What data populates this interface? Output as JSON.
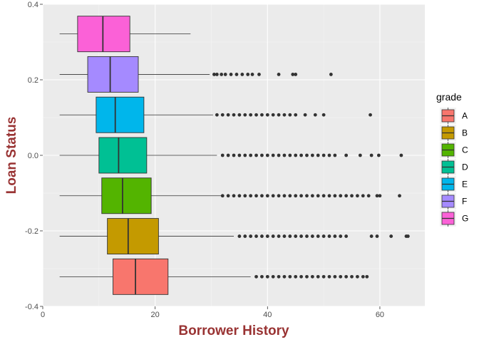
{
  "chart_data": {
    "type": "boxplot",
    "orientation": "horizontal",
    "xlabel": "Borrower History",
    "ylabel": "Loan Status",
    "xlim": [
      0,
      68
    ],
    "ylim": [
      -0.4,
      0.4
    ],
    "x_ticks": [
      0,
      20,
      40,
      60
    ],
    "y_ticks": [
      -0.4,
      -0.2,
      0.0,
      0.2,
      0.4
    ],
    "y_tick_labels": [
      "-0.4",
      "-0.2",
      "0.0",
      "0.2",
      "0.4"
    ],
    "legend": {
      "title": "grade",
      "position": "right"
    },
    "grid": true,
    "series": [
      {
        "name": "A",
        "color": "#F8766D",
        "y_center": -0.3214,
        "whisker_low": 3,
        "q1": 12.5,
        "median": 16.5,
        "q3": 22.3,
        "whisker_high": 37,
        "outliers": [
          38,
          39,
          40,
          41,
          42,
          43,
          44,
          45,
          46,
          47,
          48,
          49,
          50,
          51,
          52,
          53,
          54,
          55,
          56,
          57,
          57.7
        ]
      },
      {
        "name": "B",
        "color": "#C49A00",
        "y_center": -0.2143,
        "whisker_low": 3,
        "q1": 11.5,
        "median": 15.2,
        "q3": 20.6,
        "whisker_high": 34,
        "outliers": [
          35,
          36,
          37,
          38,
          39,
          40,
          41,
          42,
          43,
          44,
          45,
          46,
          47,
          48,
          49,
          50,
          51,
          52,
          53,
          54,
          58.5,
          59.5,
          62,
          64.7,
          65
        ]
      },
      {
        "name": "C",
        "color": "#53B400",
        "y_center": -0.1071,
        "whisker_low": 3,
        "q1": 10.5,
        "median": 14.2,
        "q3": 19.3,
        "whisker_high": 31.8,
        "outliers": [
          32,
          33,
          34,
          35,
          36,
          37,
          38,
          39,
          40,
          41,
          42,
          43,
          44,
          45,
          46,
          47,
          48,
          49,
          50,
          51,
          52,
          53,
          54,
          55,
          56,
          57,
          58,
          59.5,
          60,
          63.5
        ]
      },
      {
        "name": "D",
        "color": "#00C094",
        "y_center": 0.0,
        "whisker_low": 3,
        "q1": 10.0,
        "median": 13.5,
        "q3": 18.5,
        "whisker_high": 31,
        "outliers": [
          32,
          33,
          34,
          35,
          36,
          37,
          38,
          39,
          40,
          41,
          42,
          43,
          44,
          45,
          46,
          47,
          48,
          49,
          50,
          51,
          52,
          54,
          56.5,
          58.5,
          59.8,
          63.8
        ]
      },
      {
        "name": "E",
        "color": "#00B6EB",
        "y_center": 0.1071,
        "whisker_low": 3,
        "q1": 9.5,
        "median": 12.9,
        "q3": 18.0,
        "whisker_high": 30.3,
        "outliers": [
          31,
          32,
          33,
          34,
          35,
          36,
          37,
          38,
          39,
          40,
          41,
          42,
          43,
          44,
          45,
          46.7,
          48.5,
          50,
          58.3
        ]
      },
      {
        "name": "F",
        "color": "#A58AFF",
        "y_center": 0.2143,
        "whisker_low": 3,
        "q1": 8.0,
        "median": 12.0,
        "q3": 17.0,
        "whisker_high": 29.7,
        "outliers": [
          30.5,
          31,
          31.8,
          32.5,
          33.5,
          34.5,
          35.5,
          36.5,
          37.3,
          38.5,
          42,
          44.5,
          45,
          51.3
        ]
      },
      {
        "name": "G",
        "color": "#FB61D7",
        "y_center": 0.3214,
        "whisker_low": 3,
        "q1": 6.2,
        "median": 10.7,
        "q3": 15.5,
        "whisker_high": 26.3,
        "outliers": []
      }
    ]
  }
}
